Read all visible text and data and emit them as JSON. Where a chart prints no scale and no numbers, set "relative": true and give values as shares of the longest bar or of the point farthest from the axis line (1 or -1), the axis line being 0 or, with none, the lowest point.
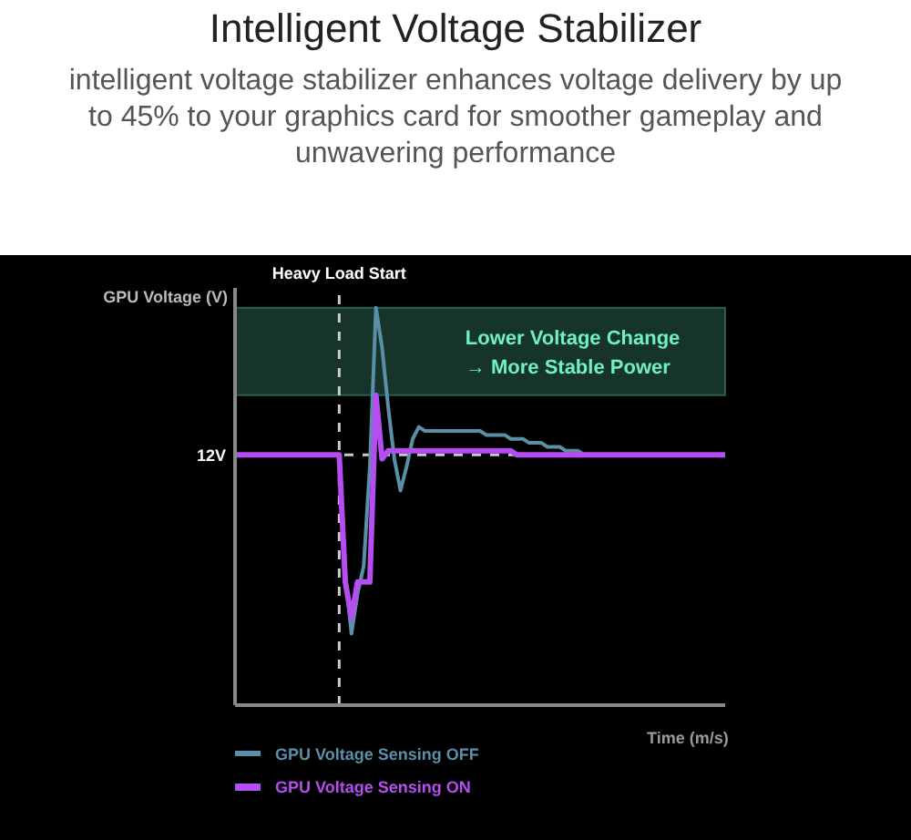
{
  "chart_data": {
    "type": "line",
    "title": "Intelligent Voltage Stabilizer",
    "subtitle": "intelligent voltage stabilizer enhances voltage delivery by up to 45% to your graphics card for smoother gameplay and unwavering performance",
    "xlabel": "Time (m/s)",
    "ylabel": "GPU Voltage (V)",
    "relative": true,
    "legend": "bottom left",
    "annotations": [
      "Heavy Load Start"
    ],
    "categories": [
      null,
      null,
      null,
      null,
      null,
      null,
      null,
      null,
      null,
      null,
      null,
      null,
      null,
      null,
      null,
      null,
      null,
      null,
      null,
      null,
      null,
      null,
      null,
      null,
      null,
      null,
      null,
      null,
      null,
      null,
      null,
      null,
      null,
      null,
      null,
      null,
      null,
      null,
      null,
      null,
      null,
      null,
      null,
      null,
      null,
      null,
      null,
      null,
      null,
      null,
      null,
      null,
      null,
      null,
      null,
      null,
      null,
      null,
      null,
      null,
      null,
      null,
      null,
      null,
      null,
      null,
      null,
      null,
      null,
      null,
      null,
      null,
      null,
      null,
      null,
      null,
      null,
      null,
      null,
      null,
      null
    ],
    "series": [
      {
        "name": "GPU Voltage Sensing OFF",
        "color": "#5b8fa8",
        "values": [
          null,
          null,
          null,
          null,
          null,
          null,
          null,
          null,
          null,
          null,
          null,
          null,
          null,
          null,
          null,
          null,
          null,
          0.63,
          0.33,
          0.18,
          0.28,
          0.35,
          0.6,
          1,
          0.9,
          0.75,
          0.62,
          0.54,
          0.6,
          0.67,
          0.7,
          0.69,
          0.69,
          0.69,
          0.69,
          0.69,
          0.69,
          0.69,
          0.69,
          0.69,
          0.69,
          0.68,
          0.68,
          0.68,
          0.68,
          0.67,
          0.67,
          0.67,
          0.66,
          0.66,
          0.66,
          0.65,
          0.65,
          0.65,
          0.64,
          0.64,
          0.64,
          0.63,
          null,
          null,
          null,
          null,
          null,
          null,
          null,
          null,
          null,
          null,
          null,
          null,
          null,
          null,
          null,
          null,
          null,
          null,
          null,
          null,
          null,
          null,
          null
        ]
      },
      {
        "name": "GPU Voltage Sensing ON",
        "color": "#b44ef0",
        "values": [
          0.63,
          0.63,
          0.63,
          0.63,
          0.63,
          0.63,
          0.63,
          0.63,
          0.63,
          0.63,
          0.63,
          0.63,
          0.63,
          0.63,
          0.63,
          0.63,
          0.63,
          0.63,
          0.31,
          0.22,
          0.31,
          0.31,
          0.31,
          0.78,
          0.62,
          0.64,
          0.64,
          0.64,
          0.64,
          0.64,
          0.64,
          0.64,
          0.64,
          0.64,
          0.64,
          0.64,
          0.64,
          0.64,
          0.64,
          0.64,
          0.64,
          0.64,
          0.64,
          0.64,
          0.64,
          0.64,
          0.63,
          0.63,
          0.63,
          0.63,
          0.63,
          0.63,
          0.63,
          0.63,
          0.63,
          0.63,
          0.63,
          0.63,
          0.63,
          0.63,
          0.63,
          0.63,
          0.63,
          0.63,
          0.63,
          0.63,
          0.63,
          0.63,
          0.63,
          0.63,
          0.63,
          0.63,
          0.63,
          0.63,
          0.63,
          0.63,
          0.63,
          0.63,
          0.63,
          0.63,
          0.63
        ]
      }
    ],
    "ref_lines": [
      {
        "axis": "y",
        "value": 0.63,
        "label": "12V",
        "color": "#cccccc",
        "line_style": "dashed"
      }
    ],
    "bands": [
      {
        "axis": "y",
        "from": 0.78,
        "to": 1,
        "label": "Lower Voltage Change\n→ More Stable Power",
        "color": "#1f4a3c"
      }
    ]
  }
}
